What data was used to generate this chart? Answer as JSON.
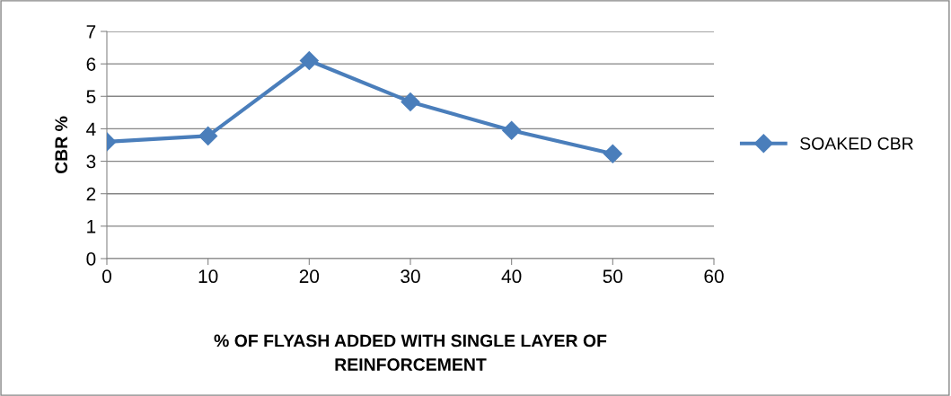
{
  "chart_data": {
    "type": "line",
    "xlabel": "% OF FLYASH ADDED WITH SINGLE LAYER OF\nREINFORCEMENT",
    "ylabel": "CBR %",
    "x": [
      0,
      10,
      20,
      30,
      40,
      50
    ],
    "series": [
      {
        "name": "SOAKED CBR",
        "color": "#4a7ebb",
        "values": [
          3.6,
          3.78,
          6.1,
          4.83,
          3.95,
          3.23
        ]
      }
    ],
    "xlim": [
      0,
      60
    ],
    "xticks": [
      0,
      10,
      20,
      30,
      40,
      50,
      60
    ],
    "ylim": [
      0,
      7
    ],
    "yticks": [
      0,
      1,
      2,
      3,
      4,
      5,
      6,
      7
    ],
    "grid": "y",
    "legend": "right",
    "marker": "diamond",
    "line_style": "solid"
  }
}
